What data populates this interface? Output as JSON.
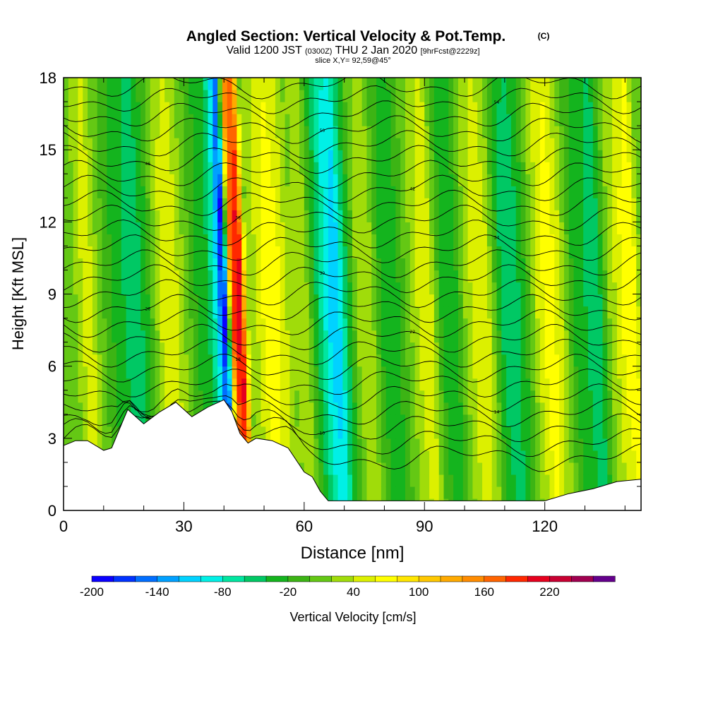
{
  "chart_data": {
    "type": "heatmap",
    "title": "Angled Section: Vertical Velocity & Pot.Temp.",
    "title_mark": "(C)",
    "subtitle": {
      "valid": "Valid 1200 JST",
      "zulu": "(0300Z)",
      "date": "THU 2 Jan 2020",
      "forecast": "[9hrFcst@2229z]",
      "slice": "slice X,Y= 92,59@45°"
    },
    "xlabel": "Distance [nm]",
    "ylabel": "Height [Kft MSL]",
    "xlim": [
      0,
      144
    ],
    "ylim": [
      0,
      18
    ],
    "x_ticks": [
      "0",
      "30",
      "60",
      "90",
      "120"
    ],
    "y_ticks": [
      "0",
      "3",
      "6",
      "9",
      "12",
      "15",
      "18"
    ],
    "colorbar": {
      "label": "Vertical Velocity [cm/s]",
      "tick_labels": [
        "-200",
        "-140",
        "-80",
        "-20",
        "40",
        "100",
        "160",
        "220"
      ],
      "levels": [
        -200,
        -180,
        -160,
        -140,
        -120,
        -100,
        -80,
        -60,
        -40,
        -20,
        0,
        20,
        40,
        60,
        80,
        100,
        120,
        140,
        160,
        180,
        200,
        220,
        240,
        260
      ],
      "colors": [
        "#0a00ff",
        "#0032ff",
        "#006eff",
        "#00a0ff",
        "#00d2ff",
        "#00f0e6",
        "#00e6a0",
        "#00c864",
        "#14b41e",
        "#3cb414",
        "#64c814",
        "#a0dc0a",
        "#dcf000",
        "#ffff00",
        "#ffe600",
        "#ffc800",
        "#ffaa00",
        "#ff8c00",
        "#ff6400",
        "#ff2800",
        "#e6001e",
        "#c80032",
        "#a00050",
        "#64008c"
      ]
    },
    "velocity_profile": {
      "x": [
        0,
        3,
        6,
        9,
        12,
        15,
        18,
        21,
        24,
        27,
        30,
        33,
        36,
        38,
        40,
        42,
        44,
        46,
        48,
        51,
        54,
        57,
        60,
        63,
        66,
        68,
        70,
        73,
        76,
        79,
        82,
        85,
        88,
        91,
        94,
        97,
        100,
        103,
        106,
        109,
        112,
        115,
        118,
        121,
        124,
        127,
        130,
        133,
        136,
        139,
        142,
        144
      ],
      "w": [
        0,
        20,
        60,
        10,
        -20,
        -40,
        -60,
        -20,
        40,
        60,
        20,
        -20,
        -40,
        -90,
        -200,
        180,
        220,
        20,
        40,
        80,
        60,
        20,
        40,
        -40,
        -100,
        -120,
        -60,
        20,
        40,
        -20,
        -40,
        0,
        40,
        60,
        -20,
        -40,
        20,
        60,
        40,
        -40,
        -60,
        -20,
        40,
        80,
        40,
        -20,
        -40,
        -60,
        20,
        60,
        80,
        20
      ]
    },
    "terrain": {
      "x": [
        0,
        3,
        6,
        10,
        12,
        14,
        16,
        20,
        24,
        28,
        32,
        36,
        40,
        42,
        44,
        46,
        48,
        52,
        56,
        60,
        62,
        64,
        66,
        68,
        72,
        80,
        90,
        100,
        110,
        115,
        120,
        126,
        132,
        138,
        144
      ],
      "h": [
        2.7,
        2.9,
        2.9,
        2.5,
        2.6,
        3.4,
        4.2,
        3.6,
        4.1,
        4.5,
        3.9,
        4.3,
        4.6,
        4.1,
        3.2,
        2.8,
        3.0,
        2.9,
        2.6,
        1.6,
        1.4,
        0.8,
        0.4,
        0.4,
        0.4,
        0.4,
        0.4,
        0.4,
        0.4,
        0.4,
        0.4,
        0.7,
        0.9,
        1.2,
        1.3
      ]
    },
    "theta_contours": {
      "base_values_C": [
        6,
        8,
        10,
        12,
        14,
        16,
        18,
        20,
        22,
        24,
        26,
        28,
        30,
        32,
        34,
        36,
        38,
        40,
        42,
        44,
        46,
        48,
        50,
        52,
        54,
        56
      ],
      "label_every": 2
    }
  }
}
